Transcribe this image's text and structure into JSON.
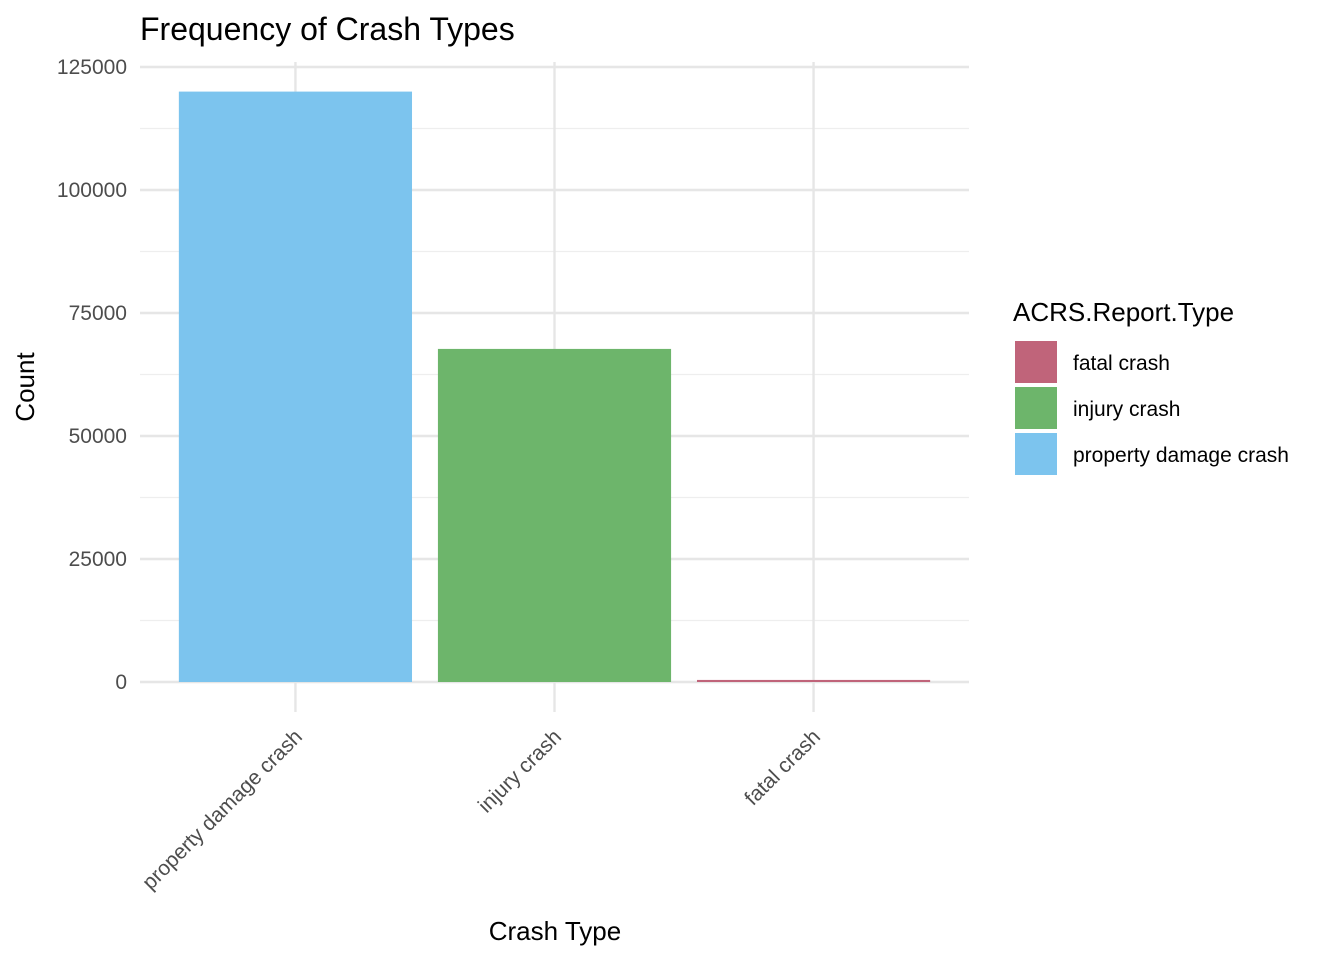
{
  "chart_data": {
    "type": "bar",
    "title": "Frequency of Crash Types",
    "xlabel": "Crash Type",
    "ylabel": "Count",
    "categories": [
      "property damage crash",
      "injury crash",
      "fatal crash"
    ],
    "values": [
      120000,
      67700,
      420
    ],
    "ylim": [
      0,
      125000
    ],
    "yticks": [
      0,
      25000,
      50000,
      75000,
      100000,
      125000
    ],
    "ytick_labels": [
      "0",
      "25000",
      "50000",
      "75000",
      "100000",
      "125000"
    ],
    "grid": true,
    "legend": {
      "title": "ACRS.Report.Type",
      "placement": "right",
      "entries": [
        {
          "label": "fatal crash",
          "color": "#c0647a"
        },
        {
          "label": "injury crash",
          "color": "#6db56b"
        },
        {
          "label": "property damage crash",
          "color": "#7cc4ee"
        }
      ]
    },
    "bar_colors": {
      "property damage crash": "#7cc4ee",
      "injury crash": "#6db56b",
      "fatal crash": "#c0647a"
    }
  }
}
